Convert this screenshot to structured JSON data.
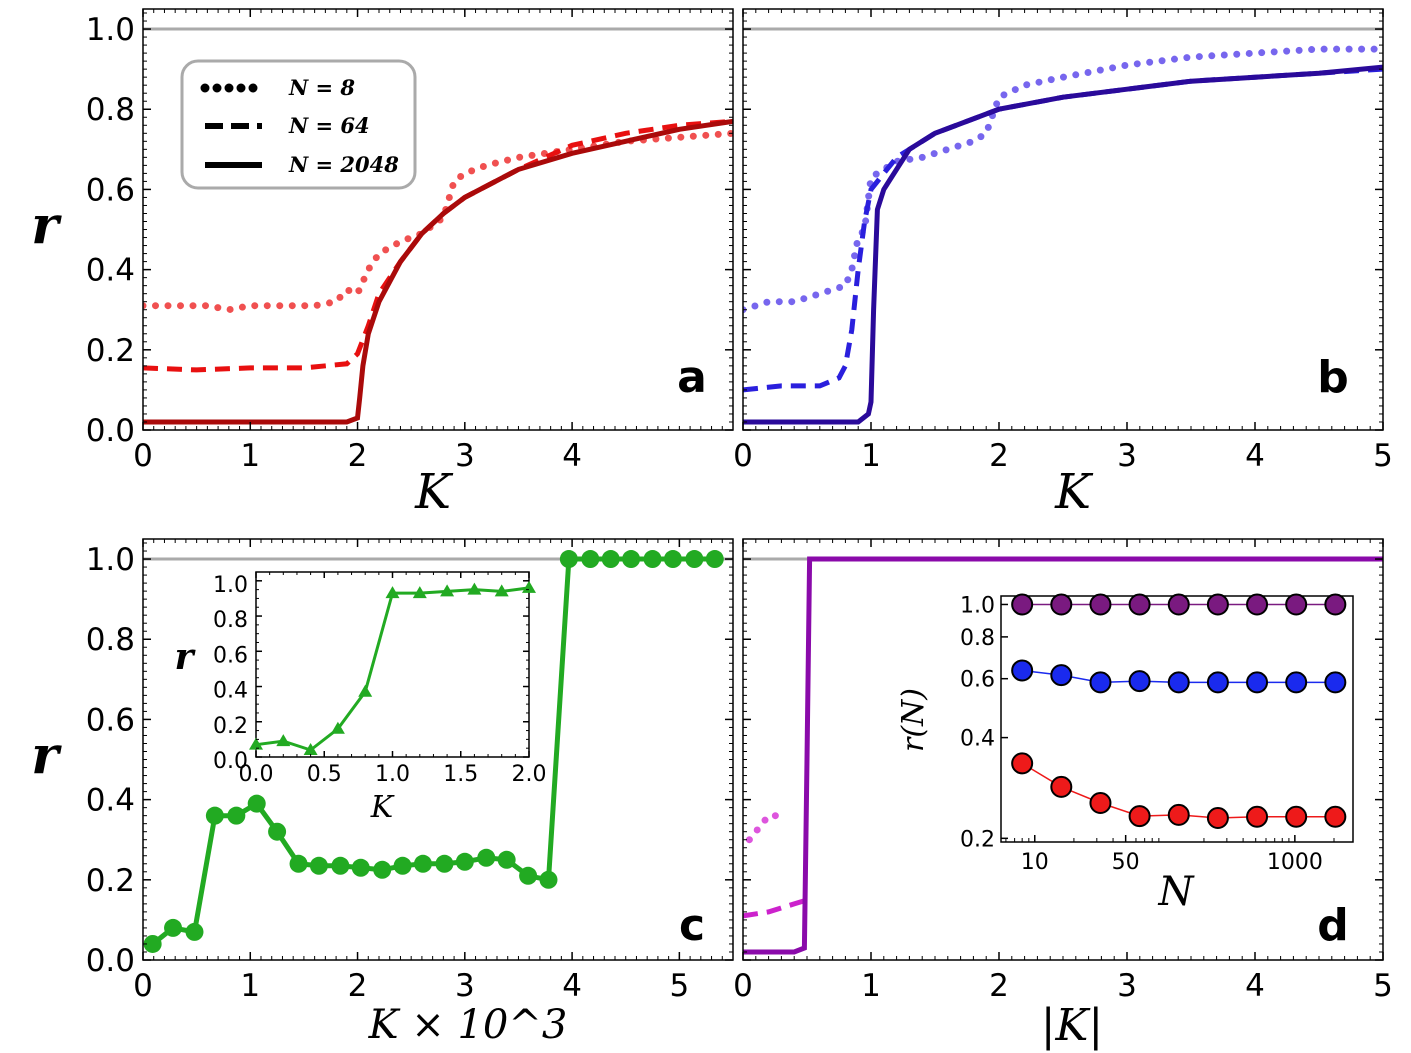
{
  "chart_data": [
    {
      "panel": "a",
      "type": "line",
      "xlabel": "K",
      "ylabel": "r",
      "xlim": [
        0,
        5.5
      ],
      "ylim": [
        0,
        1.05
      ],
      "x_ticks": [
        "0",
        "1",
        "2",
        "3",
        "4"
      ],
      "y_ticks": [
        "0.0",
        "0.2",
        "0.4",
        "0.6",
        "0.8",
        "1.0"
      ],
      "reference_line": 1.0,
      "legend": {
        "position": "top-left",
        "entries": [
          {
            "label": "N = 8",
            "style": "dotted"
          },
          {
            "label": "N = 64",
            "style": "dashed"
          },
          {
            "label": "N = 2048",
            "style": "solid"
          }
        ]
      },
      "series": [
        {
          "name": "N = 8",
          "style": "dotted",
          "color": "#f05050",
          "x": [
            0,
            0.2,
            0.4,
            0.6,
            0.8,
            1.0,
            1.2,
            1.4,
            1.6,
            1.8,
            1.9,
            2.0,
            2.1,
            2.2,
            2.4,
            2.6,
            2.8,
            2.9,
            3.0,
            3.2,
            3.5,
            4.0,
            4.5,
            5.0,
            5.5
          ],
          "y": [
            0.31,
            0.31,
            0.31,
            0.31,
            0.3,
            0.31,
            0.31,
            0.31,
            0.31,
            0.32,
            0.35,
            0.34,
            0.4,
            0.44,
            0.47,
            0.49,
            0.53,
            0.62,
            0.64,
            0.66,
            0.68,
            0.7,
            0.72,
            0.73,
            0.74
          ]
        },
        {
          "name": "N = 64",
          "style": "dashed",
          "color": "#e81010",
          "x": [
            0,
            0.5,
            1.0,
            1.5,
            1.9,
            2.0,
            2.1,
            2.2,
            2.4,
            2.6,
            2.8,
            3.0,
            3.5,
            4.0,
            4.5,
            5.0,
            5.5
          ],
          "y": [
            0.155,
            0.15,
            0.155,
            0.155,
            0.165,
            0.19,
            0.26,
            0.34,
            0.42,
            0.49,
            0.54,
            0.58,
            0.65,
            0.71,
            0.74,
            0.76,
            0.77
          ]
        },
        {
          "name": "N = 2048",
          "style": "solid",
          "color": "#aa0a0a",
          "x": [
            0,
            0.5,
            1.0,
            1.5,
            1.9,
            2.0,
            2.02,
            2.05,
            2.1,
            2.2,
            2.4,
            2.6,
            2.8,
            3.0,
            3.5,
            4.0,
            4.5,
            5.0,
            5.5
          ],
          "y": [
            0.02,
            0.02,
            0.02,
            0.02,
            0.02,
            0.03,
            0.08,
            0.16,
            0.24,
            0.32,
            0.42,
            0.49,
            0.54,
            0.58,
            0.65,
            0.69,
            0.72,
            0.75,
            0.77
          ]
        }
      ]
    },
    {
      "panel": "b",
      "type": "line",
      "xlabel": "K",
      "ylabel": "r",
      "xlim": [
        0,
        5
      ],
      "ylim": [
        0,
        1.05
      ],
      "x_ticks": [
        "0",
        "1",
        "2",
        "3",
        "4",
        "5"
      ],
      "reference_line": 1.0,
      "series": [
        {
          "name": "N = 8",
          "style": "dotted",
          "color": "#7766ee",
          "x": [
            0,
            0.2,
            0.4,
            0.6,
            0.8,
            0.85,
            0.9,
            0.95,
            1.0,
            1.2,
            1.4,
            1.6,
            1.8,
            1.9,
            2.0,
            2.2,
            2.5,
            3.0,
            3.5,
            4.0,
            4.5,
            5.0
          ],
          "y": [
            0.3,
            0.32,
            0.32,
            0.34,
            0.36,
            0.4,
            0.48,
            0.5,
            0.63,
            0.67,
            0.68,
            0.7,
            0.72,
            0.74,
            0.83,
            0.86,
            0.88,
            0.91,
            0.93,
            0.94,
            0.95,
            0.95
          ]
        },
        {
          "name": "N = 64",
          "style": "dashed",
          "color": "#2a1fdd",
          "x": [
            0,
            0.3,
            0.6,
            0.75,
            0.8,
            0.85,
            0.9,
            0.95,
            1.0,
            1.2,
            1.5,
            2.0,
            2.5,
            3.0,
            3.5,
            4.0,
            4.5,
            5.0
          ],
          "y": [
            0.1,
            0.11,
            0.11,
            0.13,
            0.16,
            0.25,
            0.4,
            0.52,
            0.6,
            0.68,
            0.74,
            0.8,
            0.83,
            0.85,
            0.87,
            0.88,
            0.89,
            0.9
          ]
        },
        {
          "name": "N = 2048",
          "style": "solid",
          "color": "#2a0a9a",
          "x": [
            0,
            0.3,
            0.6,
            0.9,
            0.98,
            1.0,
            1.02,
            1.05,
            1.1,
            1.3,
            1.5,
            2.0,
            2.5,
            3.0,
            3.5,
            4.0,
            4.5,
            5.0
          ],
          "y": [
            0.02,
            0.02,
            0.02,
            0.02,
            0.04,
            0.07,
            0.3,
            0.55,
            0.6,
            0.7,
            0.74,
            0.8,
            0.83,
            0.85,
            0.87,
            0.88,
            0.89,
            0.905
          ]
        }
      ]
    },
    {
      "panel": "c",
      "type": "line",
      "xlabel": "K × 10^3",
      "ylabel": "r",
      "xlim": [
        0,
        5.5
      ],
      "ylim": [
        0,
        1.05
      ],
      "x_ticks": [
        "0",
        "1",
        "2",
        "3",
        "4",
        "5"
      ],
      "y_ticks": [
        "0.0",
        "0.2",
        "0.4",
        "0.6",
        "0.8",
        "1.0"
      ],
      "reference_line": 1.0,
      "series": [
        {
          "name": "r",
          "color": "#22aa22",
          "marker": "circle",
          "x": [
            0.09,
            0.28,
            0.48,
            0.67,
            0.87,
            1.06,
            1.25,
            1.45,
            1.64,
            1.84,
            2.03,
            2.23,
            2.42,
            2.61,
            2.81,
            3.0,
            3.2,
            3.39,
            3.59,
            3.78,
            3.97,
            4.17,
            4.36,
            4.55,
            4.75,
            4.94,
            5.14,
            5.33
          ],
          "y": [
            0.04,
            0.08,
            0.07,
            0.36,
            0.36,
            0.39,
            0.32,
            0.24,
            0.235,
            0.235,
            0.23,
            0.225,
            0.235,
            0.24,
            0.24,
            0.245,
            0.255,
            0.25,
            0.21,
            0.2,
            1.0,
            1.0,
            1.0,
            1.0,
            1.0,
            1.0,
            1.0,
            1.0
          ]
        }
      ],
      "inset": {
        "xlabel": "K",
        "ylabel": "r",
        "xlim": [
          0,
          2
        ],
        "ylim": [
          0,
          1.05
        ],
        "x_ticks": [
          "0.0",
          "0.5",
          "1.0",
          "1.5",
          "2.0"
        ],
        "y_ticks": [
          "0.0",
          "0.2",
          "0.4",
          "0.6",
          "0.8",
          "1.0"
        ],
        "marker": "triangle",
        "x": [
          0,
          0.2,
          0.4,
          0.6,
          0.8,
          1.0,
          1.2,
          1.4,
          1.6,
          1.8,
          2.0
        ],
        "y": [
          0.07,
          0.09,
          0.04,
          0.16,
          0.37,
          0.93,
          0.93,
          0.94,
          0.95,
          0.94,
          0.96
        ]
      }
    },
    {
      "panel": "d",
      "type": "line",
      "xlabel": "|K|",
      "ylabel": "r",
      "xlim": [
        0,
        5
      ],
      "ylim": [
        0,
        1.05
      ],
      "x_ticks": [
        "0",
        "1",
        "2",
        "3",
        "4",
        "5"
      ],
      "reference_line": 1.0,
      "series": [
        {
          "name": "N = 8",
          "style": "dotted",
          "color": "#dd55dd",
          "x": [
            0.05,
            0.2,
            0.3
          ],
          "y": [
            0.3,
            0.36,
            0.36
          ]
        },
        {
          "name": "N = 64",
          "style": "dashed",
          "color": "#cc22cc",
          "x": [
            0,
            0.2,
            0.4,
            0.5
          ],
          "y": [
            0.11,
            0.12,
            0.14,
            0.15
          ]
        },
        {
          "name": "N = 2048",
          "style": "solid",
          "color": "#8a0aaa",
          "x": [
            0,
            0.2,
            0.4,
            0.48,
            0.5,
            0.52,
            0.6,
            1.0,
            3.0,
            5.0
          ],
          "y": [
            0.02,
            0.02,
            0.02,
            0.03,
            0.5,
            1.0,
            1.0,
            1.0,
            1.0,
            1.0
          ]
        }
      ],
      "inset": {
        "xlabel": "N",
        "ylabel": "r(N)",
        "x_scale": "log",
        "y_scale": "log",
        "x_ticks": [
          "10",
          "50",
          "1000"
        ],
        "y_ticks": [
          "0.2",
          "0.4",
          "0.6",
          "0.8",
          "1.0"
        ],
        "x": [
          8,
          16,
          32,
          64,
          128,
          256,
          512,
          1024,
          2048
        ],
        "series": [
          {
            "name": "purple",
            "color": "#7a1a80",
            "y": [
              1.0,
              1.0,
              1.0,
              1.0,
              1.0,
              1.0,
              1.0,
              1.0,
              1.0
            ]
          },
          {
            "name": "blue",
            "color": "#1a2aee",
            "y": [
              0.635,
              0.615,
              0.585,
              0.59,
              0.585,
              0.585,
              0.585,
              0.585,
              0.585
            ]
          },
          {
            "name": "red",
            "color": "#ee1a1a",
            "y": [
              0.335,
              0.285,
              0.255,
              0.233,
              0.235,
              0.23,
              0.232,
              0.232,
              0.232
            ]
          }
        ]
      }
    }
  ]
}
